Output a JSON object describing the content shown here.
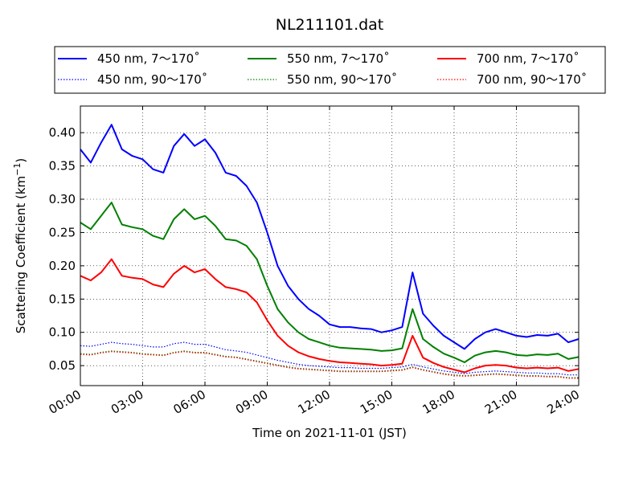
{
  "chart_data": {
    "type": "line",
    "title": "NL211101.dat",
    "xlabel": "Time on 2021-11-01 (JST)",
    "ylabel_main": "Scattering Coefficient (km",
    "ylabel_sup": "−1",
    "ylabel_end": ")",
    "x_unit": "hours",
    "xlim": [
      0,
      24
    ],
    "ylim": [
      0.02,
      0.44
    ],
    "xticks": [
      0,
      3,
      6,
      9,
      12,
      15,
      18,
      21,
      24
    ],
    "xtick_labels": [
      "00:00",
      "03:00",
      "06:00",
      "09:00",
      "12:00",
      "15:00",
      "18:00",
      "21:00",
      "24:00"
    ],
    "yticks": [
      0.05,
      0.1,
      0.15,
      0.2,
      0.25,
      0.3,
      0.35,
      0.4
    ],
    "ytick_labels": [
      "0.05",
      "0.10",
      "0.15",
      "0.20",
      "0.25",
      "0.30",
      "0.35",
      "0.40"
    ],
    "grid": true,
    "legend_position": "top",
    "x": [
      0,
      0.5,
      1,
      1.5,
      2,
      2.5,
      3,
      3.5,
      4,
      4.5,
      5,
      5.5,
      6,
      6.5,
      7,
      7.5,
      8,
      8.5,
      9,
      9.5,
      10,
      10.5,
      11,
      11.5,
      12,
      12.5,
      13,
      13.5,
      14,
      14.5,
      15,
      15.5,
      16,
      16.5,
      17,
      17.5,
      18,
      18.5,
      19,
      19.5,
      20,
      20.5,
      21,
      21.5,
      22,
      22.5,
      23,
      23.5,
      24
    ],
    "series": [
      {
        "name": "450 nm, 7～170˚",
        "color": "#0000ff",
        "style": "solid",
        "values": [
          0.375,
          0.355,
          0.385,
          0.412,
          0.375,
          0.365,
          0.36,
          0.345,
          0.34,
          0.38,
          0.398,
          0.38,
          0.39,
          0.37,
          0.34,
          0.335,
          0.32,
          0.295,
          0.25,
          0.2,
          0.17,
          0.15,
          0.135,
          0.125,
          0.112,
          0.108,
          0.108,
          0.106,
          0.105,
          0.1,
          0.103,
          0.108,
          0.19,
          0.128,
          0.11,
          0.095,
          0.085,
          0.075,
          0.09,
          0.1,
          0.105,
          0.1,
          0.095,
          0.093,
          0.096,
          0.095,
          0.098,
          0.085,
          0.09
        ]
      },
      {
        "name": "450 nm, 90～170˚",
        "color": "#0000ff",
        "style": "dotted",
        "values": [
          0.08,
          0.079,
          0.082,
          0.085,
          0.083,
          0.082,
          0.08,
          0.078,
          0.078,
          0.083,
          0.085,
          0.082,
          0.082,
          0.078,
          0.074,
          0.072,
          0.07,
          0.066,
          0.062,
          0.058,
          0.055,
          0.052,
          0.05,
          0.049,
          0.048,
          0.047,
          0.047,
          0.046,
          0.046,
          0.046,
          0.047,
          0.048,
          0.052,
          0.048,
          0.045,
          0.042,
          0.04,
          0.038,
          0.04,
          0.041,
          0.042,
          0.041,
          0.04,
          0.039,
          0.039,
          0.038,
          0.038,
          0.036,
          0.036
        ]
      },
      {
        "name": "550 nm, 7～170˚",
        "color": "#008000",
        "style": "solid",
        "values": [
          0.265,
          0.255,
          0.275,
          0.295,
          0.262,
          0.258,
          0.255,
          0.245,
          0.24,
          0.27,
          0.285,
          0.27,
          0.275,
          0.26,
          0.24,
          0.238,
          0.23,
          0.21,
          0.17,
          0.135,
          0.115,
          0.1,
          0.09,
          0.085,
          0.08,
          0.077,
          0.076,
          0.075,
          0.074,
          0.072,
          0.073,
          0.076,
          0.135,
          0.09,
          0.078,
          0.068,
          0.062,
          0.055,
          0.065,
          0.07,
          0.072,
          0.07,
          0.066,
          0.065,
          0.067,
          0.066,
          0.068,
          0.06,
          0.063
        ]
      },
      {
        "name": "550 nm, 90～170˚",
        "color": "#008000",
        "style": "dotted",
        "values": [
          0.068,
          0.067,
          0.07,
          0.072,
          0.071,
          0.07,
          0.068,
          0.067,
          0.066,
          0.07,
          0.072,
          0.07,
          0.07,
          0.067,
          0.064,
          0.063,
          0.06,
          0.057,
          0.054,
          0.051,
          0.048,
          0.046,
          0.045,
          0.044,
          0.043,
          0.042,
          0.042,
          0.042,
          0.042,
          0.042,
          0.043,
          0.044,
          0.048,
          0.044,
          0.041,
          0.038,
          0.036,
          0.035,
          0.036,
          0.037,
          0.038,
          0.037,
          0.036,
          0.035,
          0.035,
          0.034,
          0.034,
          0.032,
          0.032
        ]
      },
      {
        "name": "700 nm, 7～170˚",
        "color": "#ff0000",
        "style": "solid",
        "values": [
          0.185,
          0.178,
          0.19,
          0.21,
          0.185,
          0.182,
          0.18,
          0.172,
          0.168,
          0.188,
          0.2,
          0.19,
          0.195,
          0.18,
          0.168,
          0.165,
          0.16,
          0.145,
          0.118,
          0.095,
          0.08,
          0.07,
          0.064,
          0.06,
          0.057,
          0.055,
          0.054,
          0.053,
          0.052,
          0.05,
          0.051,
          0.053,
          0.095,
          0.062,
          0.054,
          0.048,
          0.044,
          0.04,
          0.046,
          0.05,
          0.051,
          0.05,
          0.047,
          0.046,
          0.047,
          0.046,
          0.047,
          0.042,
          0.045
        ]
      },
      {
        "name": "700 nm, 90～170˚",
        "color": "#ff0000",
        "style": "dotted",
        "values": [
          0.067,
          0.066,
          0.069,
          0.071,
          0.07,
          0.069,
          0.067,
          0.066,
          0.065,
          0.069,
          0.071,
          0.069,
          0.069,
          0.066,
          0.063,
          0.062,
          0.059,
          0.056,
          0.053,
          0.05,
          0.047,
          0.045,
          0.044,
          0.043,
          0.042,
          0.041,
          0.041,
          0.041,
          0.041,
          0.041,
          0.042,
          0.043,
          0.047,
          0.043,
          0.04,
          0.037,
          0.035,
          0.034,
          0.035,
          0.036,
          0.037,
          0.036,
          0.035,
          0.034,
          0.034,
          0.033,
          0.033,
          0.031,
          0.031
        ]
      }
    ]
  }
}
